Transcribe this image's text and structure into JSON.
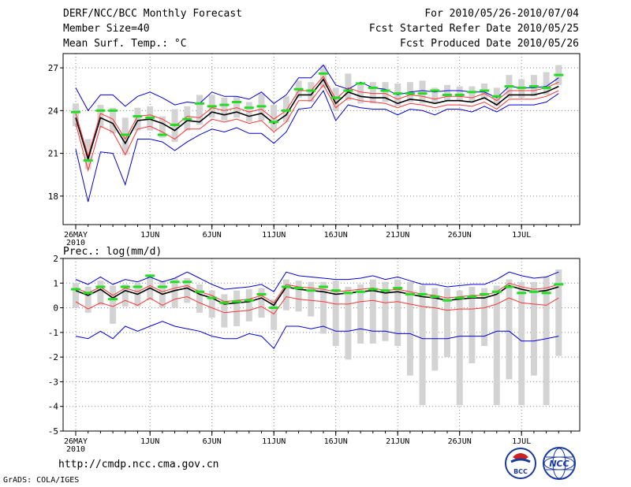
{
  "header": {
    "title": "DERF/NCC/BCC Monthly Forecast",
    "member_size": "Member Size=40",
    "variable1": "Mean Surf. Temp.: °C",
    "period": "For 2010/05/26-2010/07/04",
    "start_date": "Fcst Started Refer Date 2010/05/25",
    "produced_date": "Fcst Produced Date 2010/05/26"
  },
  "footer": {
    "url": "http://cmdp.ncc.cma.gov.cn",
    "credit": "GrADS: COLA/IGES",
    "logo_bcc": "BCC",
    "logo_ncc": "NCC"
  },
  "colors": {
    "box": "#d3d3d3",
    "green": "#22dd22",
    "mean": "#000000",
    "red": "#ff3333",
    "blue": "#0000dd"
  },
  "chart_data": [
    {
      "type": "line",
      "name": "temperature",
      "title": "Mean Surf. Temp.: °C",
      "x_tick_labels": [
        "26MAY",
        "1JUN",
        "6JUN",
        "11JUN",
        "16JUN",
        "21JUN",
        "26JUN",
        "1JUL"
      ],
      "x_tick_days": [
        0,
        6,
        11,
        16,
        21,
        26,
        31,
        36
      ],
      "x_year_label": "2010",
      "ylim": [
        16.0,
        28.0
      ],
      "yticks": [
        18,
        21,
        24,
        27
      ],
      "days": [
        0,
        1,
        2,
        3,
        4,
        5,
        6,
        7,
        8,
        9,
        10,
        11,
        12,
        13,
        14,
        15,
        16,
        17,
        18,
        19,
        20,
        21,
        22,
        23,
        24,
        25,
        26,
        27,
        28,
        29,
        30,
        31,
        32,
        33,
        34,
        35,
        36,
        37,
        38,
        39
      ],
      "mean": [
        23.5,
        20.6,
        23.5,
        23.1,
        21.7,
        23.3,
        23.4,
        23.1,
        22.6,
        23.3,
        23.2,
        23.9,
        23.7,
        23.9,
        23.6,
        23.8,
        23.1,
        23.7,
        25.1,
        25.1,
        26.2,
        24.5,
        25.3,
        25.0,
        24.9,
        24.9,
        24.5,
        24.8,
        24.7,
        24.5,
        24.7,
        24.7,
        24.6,
        24.9,
        24.4,
        25.1,
        25.1,
        25.1,
        25.3,
        25.7
      ],
      "upper_red": [
        23.8,
        20.8,
        23.8,
        23.4,
        22.0,
        23.6,
        23.7,
        23.4,
        22.9,
        23.6,
        23.5,
        24.2,
        24.0,
        24.2,
        23.9,
        24.1,
        23.4,
        24.0,
        25.4,
        25.4,
        26.4,
        24.8,
        25.6,
        25.3,
        25.2,
        25.2,
        24.8,
        25.1,
        25.0,
        24.8,
        25.0,
        25.0,
        24.9,
        25.2,
        24.7,
        25.4,
        25.4,
        25.4,
        25.6,
        26.0
      ],
      "lower_red": [
        23.1,
        19.8,
        22.9,
        22.5,
        20.9,
        22.7,
        22.9,
        22.5,
        22.0,
        22.7,
        22.7,
        23.4,
        23.2,
        23.4,
        23.1,
        23.3,
        22.5,
        23.2,
        24.7,
        24.7,
        25.8,
        24.2,
        24.9,
        24.7,
        24.6,
        24.5,
        24.2,
        24.5,
        24.4,
        24.2,
        24.4,
        24.4,
        24.3,
        24.6,
        24.1,
        24.8,
        24.8,
        24.8,
        25.0,
        25.4
      ],
      "upper_blue": [
        25.6,
        24.0,
        25.1,
        25.1,
        24.3,
        25.0,
        25.3,
        24.9,
        24.4,
        24.6,
        24.5,
        25.3,
        25.0,
        25.0,
        24.8,
        25.3,
        24.5,
        25.1,
        26.3,
        26.3,
        27.2,
        25.8,
        25.5,
        26.0,
        25.6,
        25.5,
        25.1,
        25.3,
        25.4,
        25.3,
        25.4,
        25.4,
        25.3,
        25.3,
        24.9,
        25.7,
        25.6,
        25.6,
        25.7,
        26.3
      ],
      "lower_blue": [
        21.3,
        17.6,
        21.1,
        21.0,
        18.8,
        22.0,
        22.0,
        21.8,
        21.2,
        21.8,
        22.3,
        22.7,
        22.5,
        22.8,
        22.4,
        22.4,
        21.7,
        22.5,
        24.1,
        24.2,
        25.4,
        23.3,
        24.4,
        24.2,
        24.1,
        24.1,
        23.7,
        24.1,
        24.0,
        23.7,
        24.1,
        24.1,
        23.9,
        24.3,
        23.9,
        24.4,
        24.4,
        24.4,
        24.6,
        25.2
      ],
      "green_marks": [
        23.9,
        20.5,
        24.0,
        24.0,
        22.3,
        23.6,
        23.5,
        22.3,
        23.0,
        23.4,
        24.5,
        24.3,
        24.4,
        24.6,
        24.2,
        24.3,
        23.2,
        24.0,
        25.5,
        25.4,
        26.6,
        24.9,
        25.4,
        25.9,
        25.6,
        25.4,
        25.2,
        25.2,
        25.2,
        25.4,
        25.1,
        25.1,
        25.3,
        25.4,
        25.0,
        25.7,
        25.6,
        25.7,
        25.6,
        26.5
      ],
      "box_low": [
        22.9,
        19.9,
        22.8,
        22.4,
        20.9,
        22.6,
        22.6,
        22.1,
        21.8,
        22.6,
        23.0,
        23.5,
        23.3,
        23.5,
        23.2,
        23.3,
        22.6,
        23.2,
        24.9,
        24.6,
        25.6,
        24.0,
        24.7,
        24.5,
        24.5,
        24.6,
        24.3,
        24.6,
        24.5,
        24.5,
        24.7,
        24.7,
        24.6,
        24.8,
        24.3,
        24.9,
        24.9,
        25.0,
        25.1,
        25.8
      ],
      "box_high": [
        24.5,
        22.0,
        24.4,
        24.2,
        23.5,
        24.2,
        24.3,
        23.6,
        24.1,
        24.3,
        25.1,
        25.1,
        24.9,
        25.0,
        24.6,
        25.2,
        24.4,
        25.0,
        26.1,
        26.0,
        27.2,
        25.6,
        26.6,
        25.8,
        26.0,
        26.0,
        25.9,
        26.0,
        26.1,
        25.6,
        25.8,
        25.7,
        25.7,
        25.9,
        25.6,
        26.5,
        26.2,
        26.5,
        26.7,
        27.2
      ]
    },
    {
      "type": "line",
      "name": "precipitation",
      "title": "Prec.: log(mm/d)",
      "x_tick_labels": [
        "26MAY",
        "1JUN",
        "6JUN",
        "11JUN",
        "16JUN",
        "21JUN",
        "26JUN",
        "1JUL"
      ],
      "x_tick_days": [
        0,
        6,
        11,
        16,
        21,
        26,
        31,
        36
      ],
      "x_year_label": "2010",
      "ylim": [
        -5.0,
        2.0
      ],
      "yticks": [
        -5,
        -4,
        -3,
        -2,
        -1,
        0,
        1,
        2
      ],
      "days": [
        0,
        1,
        2,
        3,
        4,
        5,
        6,
        7,
        8,
        9,
        10,
        11,
        12,
        13,
        14,
        15,
        16,
        17,
        18,
        19,
        20,
        21,
        22,
        23,
        24,
        25,
        26,
        27,
        28,
        29,
        30,
        31,
        32,
        33,
        34,
        35,
        36,
        37,
        38,
        39
      ],
      "mean": [
        0.7,
        0.5,
        0.75,
        0.4,
        0.7,
        0.55,
        0.8,
        0.55,
        0.7,
        0.8,
        0.55,
        0.4,
        0.15,
        0.2,
        0.25,
        0.4,
        0.1,
        0.85,
        0.75,
        0.7,
        0.65,
        0.55,
        0.6,
        0.65,
        0.7,
        0.6,
        0.65,
        0.55,
        0.45,
        0.4,
        0.3,
        0.35,
        0.4,
        0.4,
        0.55,
        0.9,
        0.75,
        0.65,
        0.7,
        0.85
      ],
      "upper_red": [
        0.8,
        0.6,
        0.85,
        0.5,
        0.8,
        0.65,
        0.9,
        0.65,
        0.8,
        0.9,
        0.65,
        0.5,
        0.25,
        0.3,
        0.35,
        0.5,
        0.2,
        0.95,
        0.85,
        0.8,
        0.75,
        0.65,
        0.7,
        0.75,
        0.8,
        0.7,
        0.75,
        0.65,
        0.55,
        0.5,
        0.4,
        0.45,
        0.5,
        0.5,
        0.65,
        1.0,
        0.85,
        0.75,
        0.8,
        0.95
      ],
      "lower_red": [
        0.25,
        -0.05,
        0.2,
        0.05,
        0.3,
        0.1,
        0.4,
        0.1,
        0.35,
        0.45,
        0.2,
        0.0,
        -0.2,
        -0.15,
        -0.1,
        0.05,
        -0.25,
        0.45,
        0.35,
        0.3,
        0.25,
        0.15,
        0.15,
        0.25,
        0.3,
        0.2,
        0.25,
        0.15,
        0.05,
        0.0,
        -0.1,
        -0.05,
        -0.05,
        0.0,
        0.15,
        0.4,
        0.2,
        0.15,
        0.1,
        0.4
      ],
      "upper_blue": [
        1.15,
        0.95,
        1.25,
        0.95,
        1.15,
        1.05,
        1.25,
        1.05,
        1.2,
        1.45,
        1.2,
        0.95,
        0.75,
        0.8,
        0.85,
        0.95,
        0.65,
        1.45,
        1.3,
        1.25,
        1.2,
        1.15,
        1.15,
        1.2,
        1.3,
        1.15,
        1.25,
        1.1,
        0.95,
        0.95,
        0.85,
        0.9,
        0.95,
        0.95,
        1.15,
        1.45,
        1.3,
        1.2,
        1.25,
        1.45
      ],
      "lower_blue": [
        -1.15,
        -1.25,
        -0.95,
        -1.25,
        -0.75,
        -0.95,
        -0.75,
        -0.55,
        -0.75,
        -0.85,
        -0.95,
        -1.15,
        -1.25,
        -1.25,
        -1.05,
        -1.15,
        -1.65,
        -0.75,
        -0.75,
        -0.85,
        -0.75,
        -0.95,
        -0.95,
        -0.85,
        -0.95,
        -0.95,
        -1.05,
        -1.05,
        -1.25,
        -1.25,
        -1.25,
        -1.15,
        -1.15,
        -1.15,
        -0.95,
        -0.95,
        -1.35,
        -1.35,
        -1.25,
        -1.15
      ],
      "green_marks": [
        0.75,
        0.6,
        0.85,
        0.35,
        0.85,
        0.85,
        1.3,
        0.85,
        1.05,
        1.05,
        0.65,
        0.4,
        0.2,
        0.25,
        0.3,
        0.55,
        0.0,
        0.85,
        0.8,
        0.7,
        0.85,
        0.7,
        0.6,
        0.65,
        0.75,
        0.7,
        0.8,
        0.55,
        0.55,
        0.45,
        0.3,
        0.4,
        0.45,
        0.55,
        0.65,
        0.85,
        0.6,
        0.65,
        0.6,
        0.95
      ],
      "box_low": [
        0.0,
        -0.2,
        0.1,
        -0.65,
        0.05,
        0.05,
        0.3,
        0.0,
        0.0,
        0.2,
        -0.2,
        -0.4,
        -0.8,
        -0.75,
        -0.55,
        -0.4,
        -0.9,
        -0.1,
        -0.15,
        -0.35,
        -1.05,
        -1.55,
        -2.1,
        -1.45,
        -1.45,
        -1.35,
        -1.55,
        -2.75,
        -3.95,
        -2.55,
        -2.0,
        -3.95,
        -2.25,
        -1.55,
        -3.95,
        -2.9,
        -3.95,
        -2.75,
        -3.95,
        -1.95
      ],
      "box_high": [
        1.0,
        0.85,
        1.1,
        0.9,
        0.95,
        1.0,
        1.35,
        1.1,
        1.2,
        1.2,
        0.95,
        0.7,
        0.55,
        0.7,
        0.75,
        0.8,
        0.35,
        1.15,
        1.1,
        1.05,
        1.05,
        1.1,
        0.85,
        0.95,
        1.15,
        1.05,
        1.15,
        1.05,
        0.9,
        0.8,
        0.8,
        0.7,
        0.85,
        0.8,
        0.9,
        1.15,
        1.05,
        1.05,
        1.25,
        1.55
      ]
    }
  ]
}
